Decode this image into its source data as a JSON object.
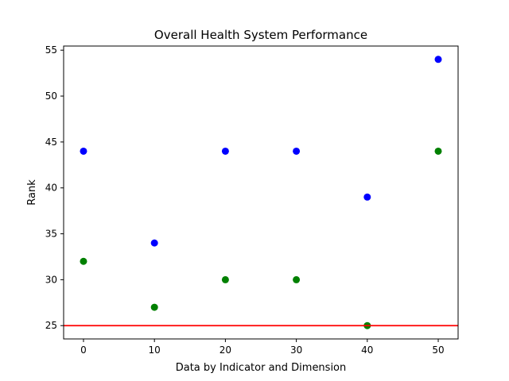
{
  "chart_data": {
    "type": "scatter",
    "title": "Overall Health System Performance",
    "xlabel": "Data by Indicator and Dimension",
    "ylabel": "Rank",
    "xlim": [
      -2.8,
      52.8
    ],
    "ylim": [
      23.55,
      55.45
    ],
    "xticks": [
      0,
      10,
      20,
      30,
      40,
      50
    ],
    "yticks": [
      25,
      30,
      35,
      40,
      45,
      50,
      55
    ],
    "grid": false,
    "series": [
      {
        "color": "#0000ff",
        "x": [
          0,
          10,
          20,
          30,
          40,
          50
        ],
        "y": [
          44,
          34,
          44,
          44,
          39,
          54
        ]
      },
      {
        "color": "#008000",
        "x": [
          0,
          10,
          20,
          30,
          40,
          50
        ],
        "y": [
          32,
          27,
          30,
          30,
          25,
          44
        ]
      }
    ],
    "hline": {
      "y": 25,
      "color": "#ff0000"
    }
  }
}
